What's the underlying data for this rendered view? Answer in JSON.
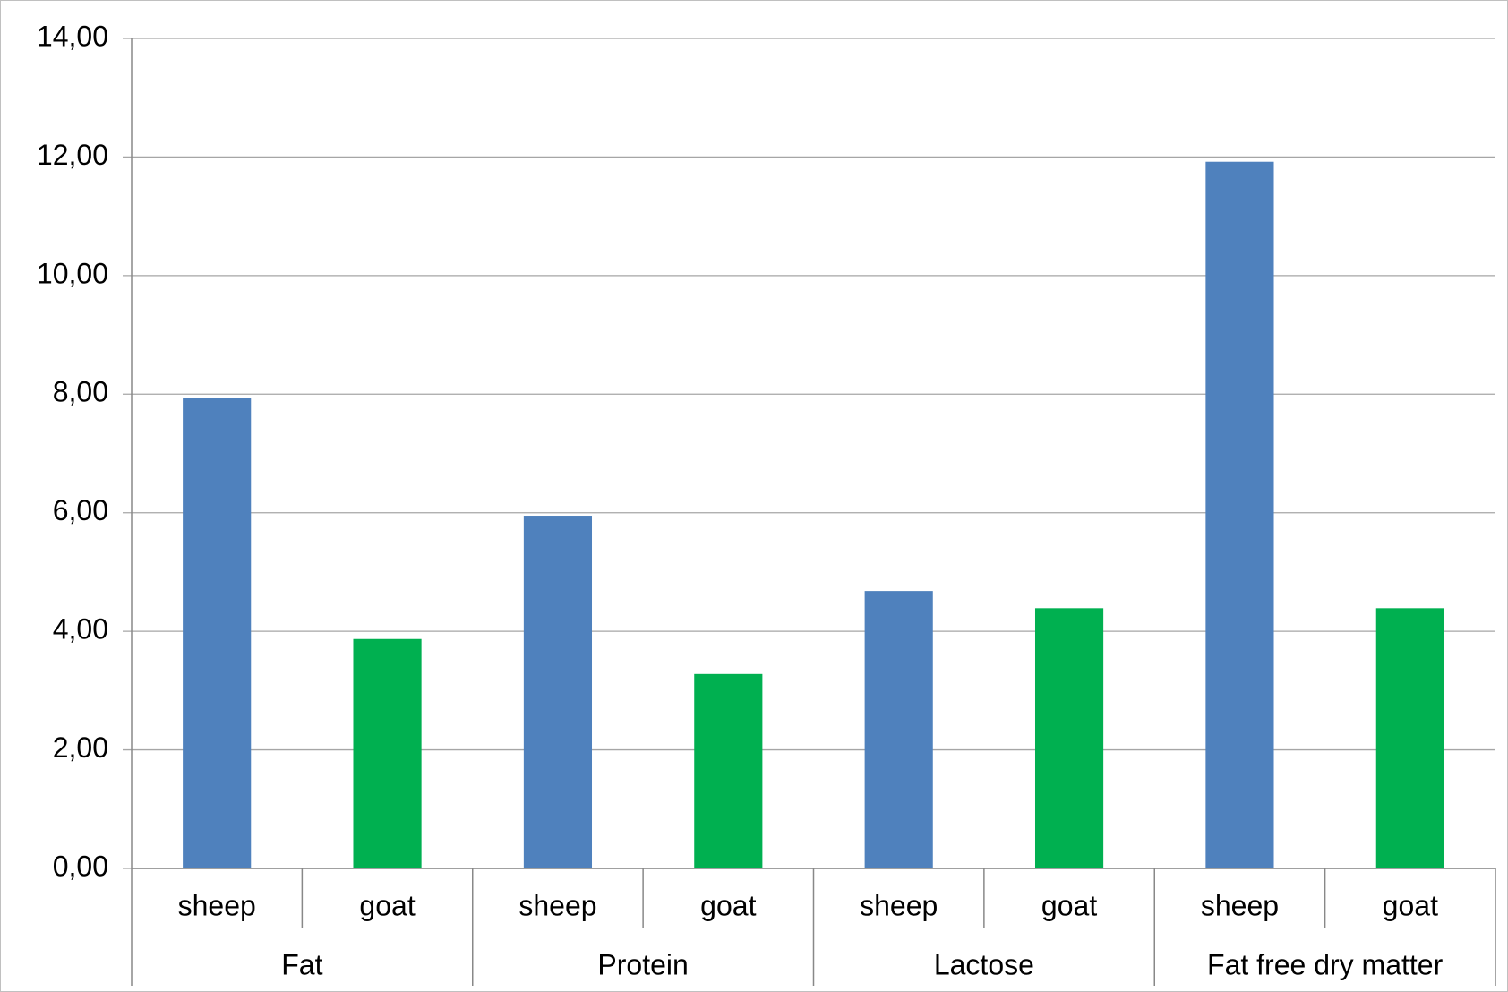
{
  "chart_data": {
    "type": "bar",
    "groups": [
      "Fat",
      "Protein",
      "Lactose",
      "Fat free dry matter"
    ],
    "categories": [
      "sheep",
      "goat",
      "sheep",
      "goat",
      "sheep",
      "goat",
      "sheep",
      "goat"
    ],
    "values": [
      7.93,
      3.87,
      5.95,
      3.28,
      4.68,
      4.39,
      11.92,
      4.39
    ],
    "colors": [
      "#4f81bd",
      "#00b050",
      "#4f81bd",
      "#00b050",
      "#4f81bd",
      "#00b050",
      "#4f81bd",
      "#00b050"
    ],
    "ylim": [
      0,
      14
    ],
    "yticks": [
      {
        "value": 0,
        "label": "0,00"
      },
      {
        "value": 2,
        "label": "2,00"
      },
      {
        "value": 4,
        "label": "4,00"
      },
      {
        "value": 6,
        "label": "6,00"
      },
      {
        "value": 8,
        "label": "8,00"
      },
      {
        "value": 10,
        "label": "10,00"
      },
      {
        "value": 12,
        "label": "12,00"
      },
      {
        "value": 14,
        "label": "14,00"
      }
    ],
    "grid": true
  }
}
